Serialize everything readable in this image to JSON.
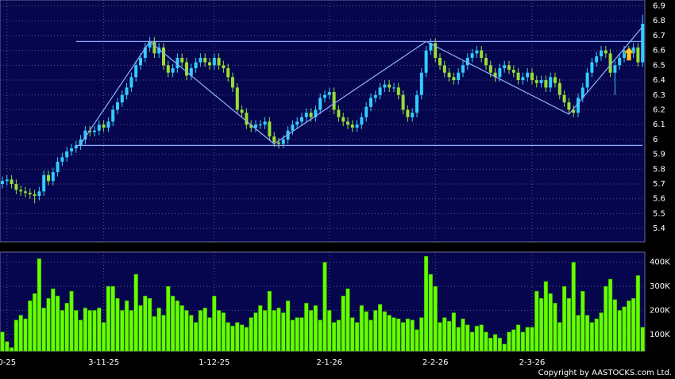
{
  "chart_data": {
    "type": "candlestick",
    "source": "Copyright by AASTOCKS.com Ltd.",
    "categories": [
      null,
      "0-25",
      null,
      null,
      null,
      null,
      null,
      null,
      null,
      null,
      null,
      null,
      null,
      null,
      null,
      null,
      null,
      null,
      null,
      null,
      null,
      null,
      "3-11-25",
      null,
      null,
      null,
      null,
      null,
      null,
      null,
      null,
      null,
      null,
      null,
      null,
      null,
      null,
      null,
      null,
      null,
      null,
      null,
      null,
      null,
      null,
      null,
      "1-12-25",
      null,
      null,
      null,
      null,
      null,
      null,
      null,
      null,
      null,
      null,
      null,
      null,
      null,
      null,
      null,
      null,
      null,
      null,
      null,
      null,
      null,
      null,
      null,
      null,
      "2-1-26",
      null,
      null,
      null,
      null,
      null,
      null,
      null,
      null,
      null,
      null,
      null,
      null,
      null,
      null,
      null,
      null,
      null,
      null,
      null,
      null,
      null,
      null,
      "2-2-26",
      null,
      null,
      null,
      null,
      null,
      null,
      null,
      null,
      null,
      null,
      null,
      null,
      null,
      null,
      null,
      null,
      null,
      null,
      null,
      null,
      "2-3-26",
      null,
      null,
      null,
      null,
      null,
      null,
      null,
      null,
      null,
      null,
      null,
      null,
      null,
      null,
      null,
      null,
      null,
      null,
      null,
      null,
      null,
      null,
      null,
      null
    ],
    "open": [
      5.7,
      5.72,
      5.73,
      5.7,
      5.66,
      5.65,
      5.64,
      5.63,
      5.62,
      5.65,
      5.76,
      5.72,
      5.78,
      5.85,
      5.88,
      5.92,
      5.94,
      5.96,
      6.0,
      6.06,
      6.05,
      6.06,
      6.1,
      6.08,
      6.12,
      6.2,
      6.25,
      6.3,
      6.35,
      6.42,
      6.5,
      6.55,
      6.62,
      6.66,
      6.58,
      6.62,
      6.5,
      6.45,
      6.48,
      6.55,
      6.52,
      6.43,
      6.48,
      6.52,
      6.55,
      6.52,
      6.5,
      6.55,
      6.5,
      6.48,
      6.42,
      6.35,
      6.2,
      6.18,
      6.1,
      6.08,
      6.1,
      6.1,
      6.12,
      6.02,
      5.98,
      5.97,
      6.0,
      6.06,
      6.1,
      6.12,
      6.15,
      6.18,
      6.15,
      6.2,
      6.28,
      6.3,
      6.32,
      6.2,
      6.15,
      6.12,
      6.1,
      6.08,
      6.1,
      6.15,
      6.22,
      6.28,
      6.3,
      6.35,
      6.37,
      6.35,
      6.35,
      6.3,
      6.2,
      6.15,
      6.18,
      6.3,
      6.45,
      6.6,
      6.65,
      6.55,
      6.5,
      6.45,
      6.42,
      6.4,
      6.45,
      6.5,
      6.55,
      6.58,
      6.6,
      6.55,
      6.5,
      6.45,
      6.42,
      6.48,
      6.5,
      6.47,
      6.45,
      6.4,
      6.42,
      6.45,
      6.4,
      6.38,
      6.4,
      6.35,
      6.42,
      6.38,
      6.3,
      6.25,
      6.2,
      6.18,
      6.28,
      6.35,
      6.45,
      6.52,
      6.56,
      6.6,
      6.58,
      6.45,
      6.5,
      6.55,
      6.6,
      6.58,
      6.62,
      6.52
    ],
    "high": [
      5.75,
      5.76,
      5.76,
      5.73,
      5.69,
      5.68,
      5.67,
      5.66,
      5.68,
      5.79,
      5.79,
      5.81,
      5.88,
      5.91,
      5.95,
      5.97,
      5.99,
      6.03,
      6.09,
      6.09,
      6.09,
      6.13,
      6.13,
      6.15,
      6.23,
      6.28,
      6.33,
      6.38,
      6.45,
      6.53,
      6.58,
      6.65,
      6.69,
      6.69,
      6.65,
      6.65,
      6.53,
      6.51,
      6.58,
      6.58,
      6.55,
      6.51,
      6.55,
      6.58,
      6.58,
      6.55,
      6.58,
      6.58,
      6.53,
      6.51,
      6.45,
      6.38,
      6.23,
      6.21,
      6.13,
      6.13,
      6.13,
      6.15,
      6.15,
      6.05,
      6.01,
      6.03,
      6.09,
      6.13,
      6.15,
      6.18,
      6.21,
      6.21,
      6.23,
      6.31,
      6.33,
      6.35,
      6.35,
      6.23,
      6.18,
      6.15,
      6.13,
      6.13,
      6.18,
      6.25,
      6.31,
      6.33,
      6.38,
      6.4,
      6.4,
      6.38,
      6.38,
      6.33,
      6.23,
      6.21,
      6.33,
      6.48,
      6.63,
      6.68,
      6.68,
      6.58,
      6.53,
      6.48,
      6.45,
      6.48,
      6.53,
      6.58,
      6.61,
      6.63,
      6.63,
      6.58,
      6.53,
      6.48,
      6.51,
      6.53,
      6.53,
      6.5,
      6.48,
      6.45,
      6.48,
      6.48,
      6.43,
      6.43,
      6.43,
      6.45,
      6.45,
      6.41,
      6.33,
      6.28,
      6.23,
      6.31,
      6.38,
      6.48,
      6.55,
      6.59,
      6.63,
      6.63,
      6.61,
      6.53,
      6.58,
      6.63,
      6.63,
      6.65,
      6.65,
      6.84
    ],
    "low": [
      5.67,
      5.69,
      5.67,
      5.63,
      5.62,
      5.61,
      5.6,
      5.57,
      5.59,
      5.62,
      5.69,
      5.69,
      5.75,
      5.82,
      5.85,
      5.89,
      5.91,
      5.93,
      5.97,
      6.02,
      6.02,
      6.03,
      6.05,
      6.05,
      6.09,
      6.17,
      6.22,
      6.27,
      6.32,
      6.39,
      6.47,
      6.52,
      6.59,
      6.55,
      6.55,
      6.47,
      6.42,
      6.42,
      6.45,
      6.49,
      6.4,
      6.4,
      6.45,
      6.49,
      6.49,
      6.47,
      6.47,
      6.47,
      6.45,
      6.39,
      6.32,
      6.17,
      6.15,
      6.07,
      6.05,
      6.05,
      6.07,
      6.07,
      5.99,
      5.95,
      5.94,
      5.94,
      5.97,
      6.03,
      6.07,
      6.09,
      6.12,
      6.12,
      6.12,
      6.17,
      6.25,
      6.27,
      6.17,
      6.12,
      6.09,
      6.07,
      6.05,
      6.05,
      6.07,
      6.12,
      6.19,
      6.25,
      6.27,
      6.32,
      6.32,
      6.32,
      6.27,
      6.17,
      6.12,
      6.12,
      6.15,
      6.27,
      6.42,
      6.57,
      6.52,
      6.47,
      6.42,
      6.39,
      6.37,
      6.37,
      6.42,
      6.47,
      6.52,
      6.55,
      6.52,
      6.47,
      6.42,
      6.39,
      6.39,
      6.45,
      6.44,
      6.42,
      6.37,
      6.37,
      6.39,
      6.37,
      6.35,
      6.35,
      6.32,
      6.32,
      6.35,
      6.27,
      6.22,
      6.17,
      6.15,
      6.15,
      6.25,
      6.32,
      6.42,
      6.49,
      6.53,
      6.55,
      6.42,
      6.3,
      6.47,
      6.52,
      6.55,
      6.55,
      6.49,
      6.49
    ],
    "close": [
      5.72,
      5.73,
      5.7,
      5.66,
      5.65,
      5.64,
      5.63,
      5.62,
      5.65,
      5.76,
      5.72,
      5.78,
      5.85,
      5.88,
      5.92,
      5.94,
      5.96,
      6.0,
      6.06,
      6.05,
      6.06,
      6.1,
      6.08,
      6.12,
      6.2,
      6.25,
      6.3,
      6.35,
      6.42,
      6.5,
      6.55,
      6.62,
      6.66,
      6.58,
      6.62,
      6.5,
      6.45,
      6.48,
      6.55,
      6.52,
      6.43,
      6.48,
      6.52,
      6.55,
      6.52,
      6.5,
      6.55,
      6.5,
      6.48,
      6.42,
      6.35,
      6.2,
      6.18,
      6.1,
      6.08,
      6.1,
      6.1,
      6.12,
      6.02,
      5.98,
      5.97,
      6.0,
      6.06,
      6.1,
      6.12,
      6.15,
      6.18,
      6.15,
      6.2,
      6.28,
      6.3,
      6.32,
      6.2,
      6.15,
      6.12,
      6.1,
      6.08,
      6.1,
      6.15,
      6.22,
      6.28,
      6.3,
      6.35,
      6.37,
      6.35,
      6.35,
      6.3,
      6.2,
      6.15,
      6.18,
      6.3,
      6.45,
      6.6,
      6.65,
      6.55,
      6.5,
      6.45,
      6.42,
      6.4,
      6.45,
      6.5,
      6.55,
      6.58,
      6.6,
      6.55,
      6.5,
      6.45,
      6.42,
      6.48,
      6.5,
      6.47,
      6.45,
      6.4,
      6.42,
      6.45,
      6.4,
      6.38,
      6.4,
      6.35,
      6.42,
      6.38,
      6.3,
      6.25,
      6.2,
      6.18,
      6.28,
      6.35,
      6.45,
      6.52,
      6.56,
      6.6,
      6.58,
      6.45,
      6.5,
      6.55,
      6.6,
      6.58,
      6.62,
      6.52,
      6.78
    ],
    "volume": [
      110000,
      70000,
      45000,
      160000,
      180000,
      165000,
      240000,
      270000,
      415000,
      210000,
      250000,
      290000,
      260000,
      200000,
      230000,
      280000,
      200000,
      160000,
      210000,
      200000,
      200000,
      210000,
      150000,
      300000,
      300000,
      250000,
      200000,
      240000,
      200000,
      350000,
      220000,
      260000,
      250000,
      175000,
      210000,
      180000,
      300000,
      260000,
      240000,
      220000,
      200000,
      180000,
      150000,
      200000,
      210000,
      170000,
      260000,
      200000,
      190000,
      150000,
      135000,
      150000,
      140000,
      130000,
      170000,
      190000,
      220000,
      200000,
      280000,
      200000,
      210000,
      190000,
      240000,
      160000,
      170000,
      170000,
      230000,
      200000,
      220000,
      160000,
      400000,
      200000,
      150000,
      160000,
      260000,
      290000,
      170000,
      150000,
      220000,
      195000,
      160000,
      200000,
      225000,
      195000,
      180000,
      170000,
      165000,
      150000,
      165000,
      160000,
      120000,
      170000,
      425000,
      350000,
      300000,
      150000,
      170000,
      155000,
      190000,
      130000,
      165000,
      140000,
      110000,
      135000,
      140000,
      110000,
      85000,
      100000,
      85000,
      60000,
      110000,
      120000,
      140000,
      110000,
      130000,
      130000,
      280000,
      250000,
      320000,
      270000,
      230000,
      150000,
      300000,
      250000,
      400000,
      180000,
      280000,
      180000,
      150000,
      165000,
      190000,
      300000,
      330000,
      245000,
      200000,
      215000,
      240000,
      250000,
      345000,
      130000
    ],
    "up_color": "#33ccff",
    "down_color": "#99dd33",
    "volume_color": "#66ff00",
    "line_color": "#8fb0ff",
    "grid": true,
    "ylim": [
      5.31,
      6.94
    ],
    "yticks": [
      5.4,
      5.5,
      5.6,
      5.7,
      5.8,
      5.9,
      6,
      6.1,
      6.2,
      6.3,
      6.4,
      6.5,
      6.6,
      6.7,
      6.8,
      6.9
    ],
    "volume_ylim": [
      30000,
      442000
    ],
    "volume_yticks": [
      {
        "value": 100000,
        "label": "100K"
      },
      {
        "value": 200000,
        "label": "200K"
      },
      {
        "value": 300000,
        "label": "300K"
      },
      {
        "value": 400000,
        "label": "400K"
      }
    ],
    "lines": [
      {
        "from": [
          16,
          6.66
        ],
        "to": [
          139,
          6.66
        ]
      },
      {
        "from": [
          16,
          5.96
        ],
        "to": [
          139,
          5.96
        ]
      },
      {
        "from": [
          17,
          5.97
        ],
        "to": [
          32,
          6.66
        ]
      },
      {
        "from": [
          32,
          6.66
        ],
        "to": [
          59,
          5.97
        ]
      },
      {
        "from": [
          59,
          5.97
        ],
        "to": [
          92,
          6.66
        ]
      },
      {
        "from": [
          92,
          6.66
        ],
        "to": [
          123,
          6.17
        ]
      },
      {
        "from": [
          123,
          6.17
        ],
        "to": [
          139,
          6.76
        ]
      }
    ]
  }
}
